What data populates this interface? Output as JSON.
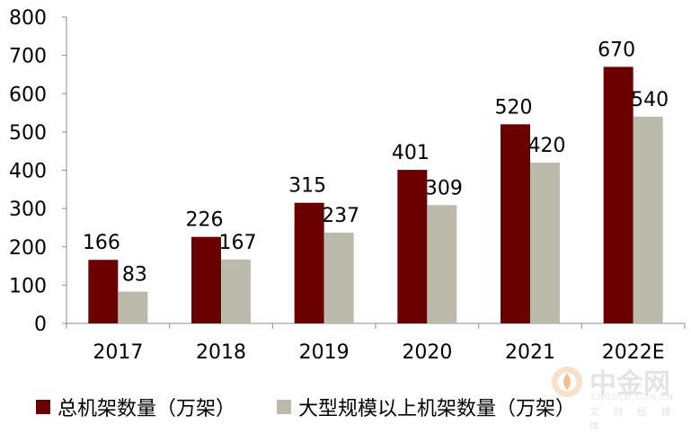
{
  "chart_data": {
    "type": "bar",
    "categories": [
      "2017",
      "2018",
      "2019",
      "2020",
      "2021",
      "2022E"
    ],
    "series": [
      {
        "name": "总机架数量（万架）",
        "values": [
          166,
          226,
          315,
          401,
          520,
          670
        ],
        "color": "#6b0000"
      },
      {
        "name": "大型规模以上机架数量（万架）",
        "values": [
          83,
          167,
          237,
          309,
          420,
          540
        ],
        "color": "#bcbaaa"
      }
    ],
    "ylim": [
      0,
      800
    ],
    "yticks": [
      "0",
      "100",
      "200",
      "300",
      "400",
      "500",
      "600",
      "700",
      "800"
    ],
    "data_labels": [
      [
        "166",
        "226",
        "315",
        "401",
        "520",
        "670"
      ],
      [
        "83",
        "167",
        "237",
        "309",
        "420",
        "540"
      ]
    ],
    "grid": false,
    "legend_position": "bottom"
  },
  "watermark": {
    "name": "中金网",
    "url": "CNGOLD.COM.CN",
    "sub": "文 财 经 媒 体"
  }
}
